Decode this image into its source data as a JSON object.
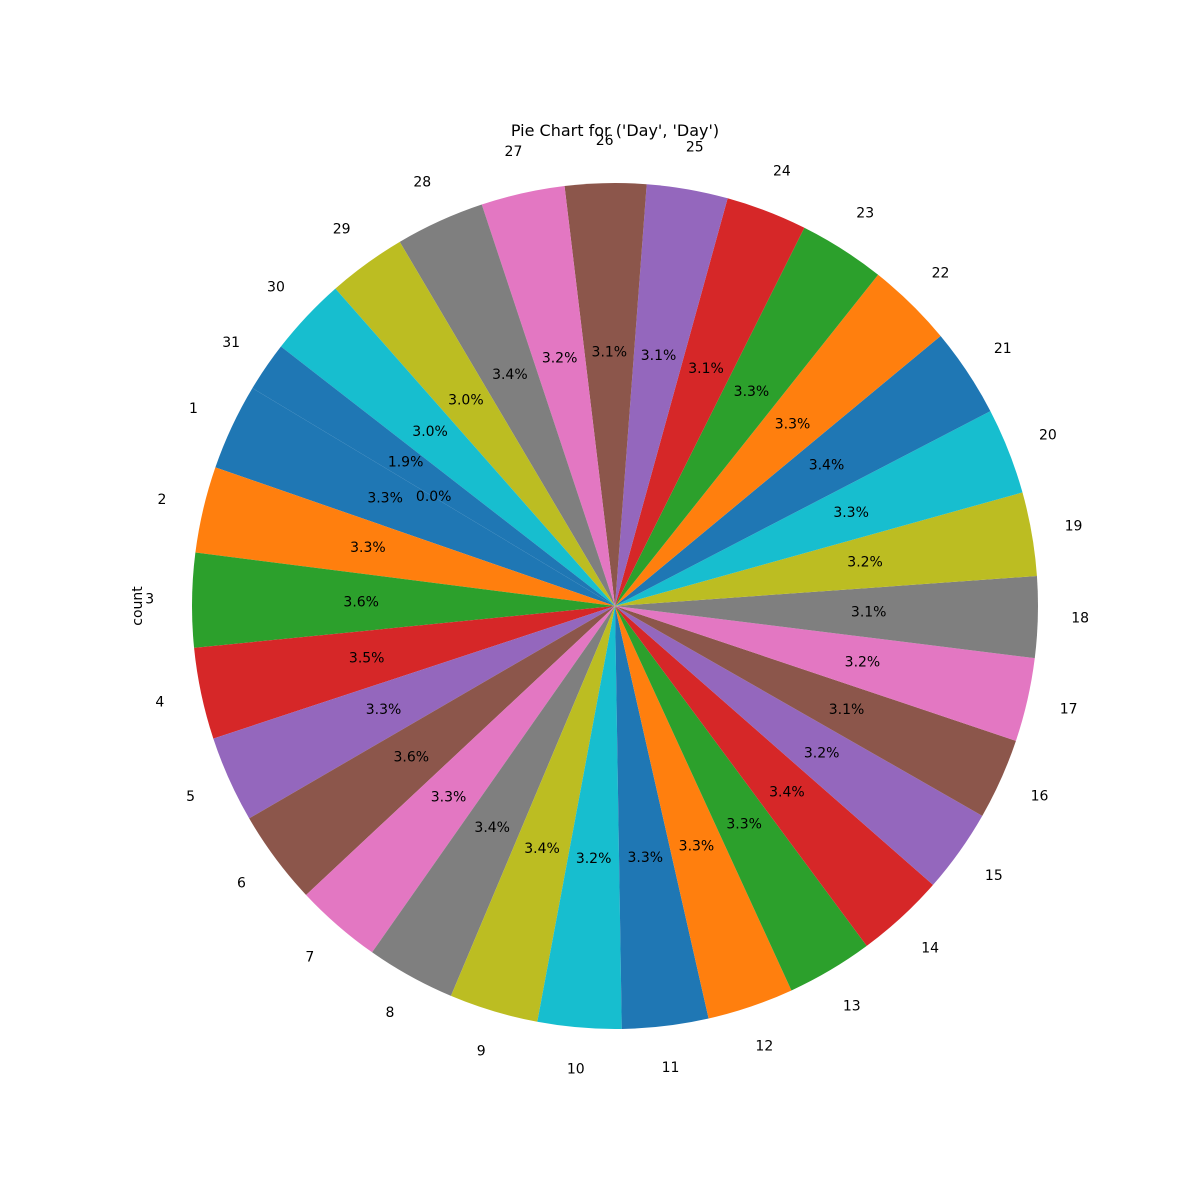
{
  "chart_data": {
    "type": "pie",
    "title": "Pie Chart for ('Day', 'Day')",
    "ylabel": "count",
    "categories": [
      "1",
      "2",
      "3",
      "4",
      "5",
      "6",
      "7",
      "8",
      "9",
      "10",
      "11",
      "12",
      "13",
      "14",
      "15",
      "16",
      "17",
      "18",
      "19",
      "20",
      "21",
      "22",
      "23",
      "24",
      "25",
      "26",
      "27",
      "28",
      "29",
      "30",
      "31"
    ],
    "values": [
      3.3,
      3.3,
      3.6,
      3.5,
      3.3,
      3.6,
      3.3,
      3.4,
      3.4,
      3.2,
      3.3,
      3.3,
      3.3,
      3.4,
      3.2,
      3.1,
      3.2,
      3.1,
      3.2,
      3.3,
      3.4,
      3.3,
      3.3,
      3.1,
      3.1,
      3.1,
      3.2,
      3.4,
      3.0,
      3.0,
      1.9
    ],
    "percent_labels": [
      "3.3%",
      "3.3%",
      "3.6%",
      "3.5%",
      "3.3%",
      "3.6%",
      "3.3%",
      "3.4%",
      "3.4%",
      "3.2%",
      "3.3%",
      "3.3%",
      "3.3%",
      "3.4%",
      "3.2%",
      "3.1%",
      "3.2%",
      "3.1%",
      "3.2%",
      "3.3%",
      "3.4%",
      "3.3%",
      "3.3%",
      "3.1%",
      "3.1%",
      "3.1%",
      "3.2%",
      "3.4%",
      "3.0%",
      "3.0%",
      "1.9%"
    ],
    "extra_labels": [
      "0.0%"
    ],
    "colors": [
      "#1f77b4",
      "#ff7f0e",
      "#2ca02c",
      "#d62728",
      "#9467bd",
      "#8c564b",
      "#e377c2",
      "#7f7f7f",
      "#bcbd22",
      "#17becf"
    ]
  }
}
